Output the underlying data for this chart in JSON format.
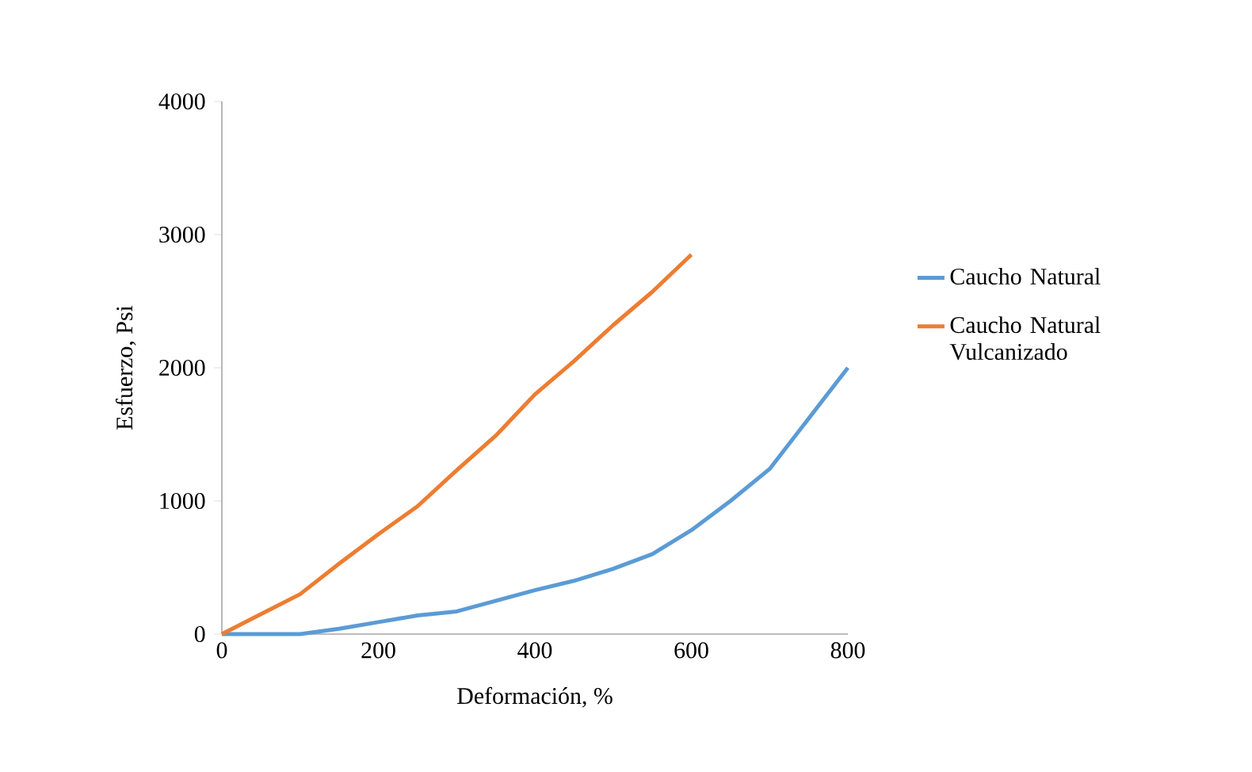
{
  "chart_data": {
    "type": "line",
    "xlabel": "Deformación, %",
    "ylabel": "Esfuerzo, Psi",
    "xlim": [
      0,
      800
    ],
    "xticks": [
      0,
      200,
      400,
      600,
      800
    ],
    "ylim": [
      0,
      4000
    ],
    "yticks": [
      0,
      1000,
      2000,
      3000,
      4000
    ],
    "grid": false,
    "legend": "right",
    "marker": "none",
    "line_style": "solid",
    "series": [
      {
        "name": "Caucho Natural",
        "color": "#5b9bd5",
        "x": [
          0,
          50,
          100,
          150,
          200,
          250,
          300,
          350,
          400,
          450,
          500,
          550,
          600,
          650,
          700,
          800
        ],
        "values": [
          0,
          0,
          0,
          40,
          90,
          140,
          170,
          250,
          330,
          400,
          490,
          600,
          780,
          1000,
          1240,
          2000
        ]
      },
      {
        "name": "Caucho Natural Vulcanizado",
        "color": "#ed7d31",
        "x": [
          0,
          50,
          100,
          150,
          200,
          250,
          300,
          350,
          400,
          450,
          500,
          550,
          600
        ],
        "values": [
          0,
          150,
          300,
          530,
          750,
          960,
          1230,
          1490,
          1800,
          2050,
          2320,
          2570,
          2850
        ]
      }
    ]
  }
}
